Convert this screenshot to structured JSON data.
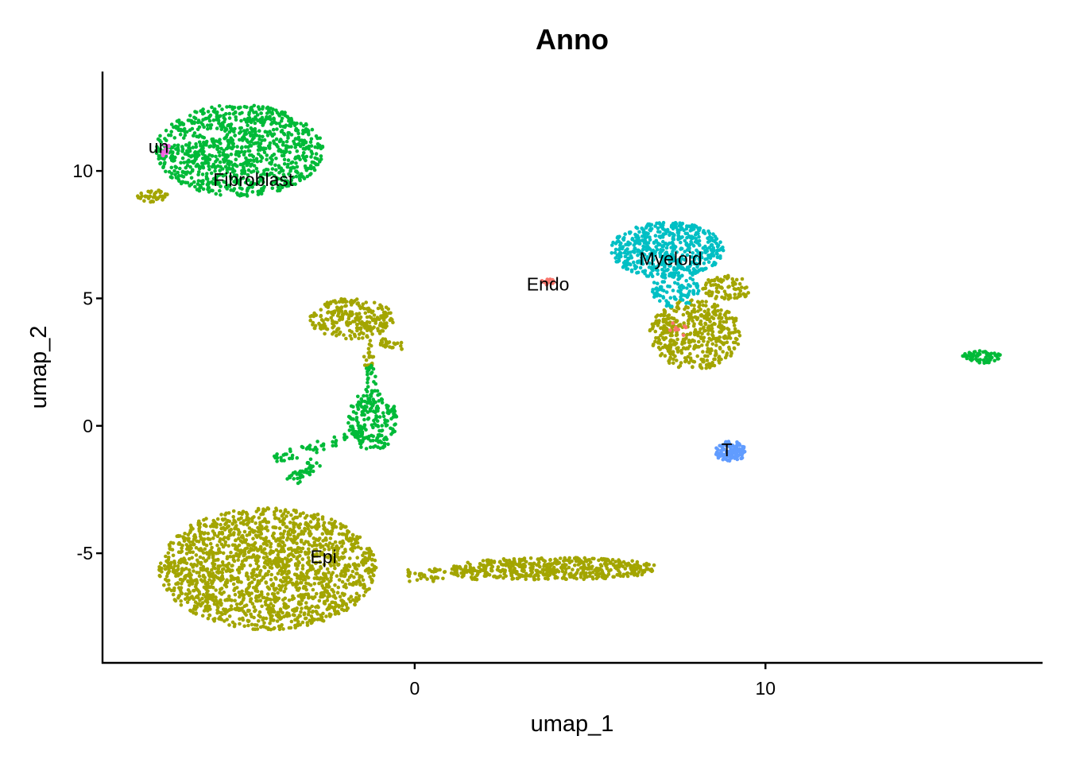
{
  "chart_data": {
    "type": "scatter",
    "title": "Anno",
    "xlabel": "umap_1",
    "ylabel": "umap_2",
    "xlim": [
      -8.9,
      17.9
    ],
    "ylim": [
      -9.3,
      13.9
    ],
    "x_ticks": [
      0,
      10
    ],
    "y_ticks": [
      -5,
      0,
      5,
      10
    ],
    "x_tick_labels": [
      "0",
      "10"
    ],
    "y_tick_labels": [
      "-5",
      "0",
      "5",
      "10"
    ],
    "grid": false,
    "legend": "none",
    "clusters": [
      {
        "name": "Epi",
        "label_pos": [
          -2.6,
          -5.2
        ],
        "color": "#A3A500"
      },
      {
        "name": "Fibroblast",
        "label_pos": [
          -4.6,
          9.6
        ],
        "color": "#00BA38"
      },
      {
        "name": "Myeloid",
        "label_pos": [
          7.3,
          6.5
        ],
        "color": "#00BFC4"
      },
      {
        "name": "Endo",
        "label_pos": [
          3.8,
          5.5
        ],
        "color": "#F8766D"
      },
      {
        "name": "T",
        "label_pos": [
          8.9,
          -1.0
        ],
        "color": "#619CFF"
      },
      {
        "name": "un",
        "label_pos": [
          -7.3,
          10.9
        ],
        "color": "#F564E3"
      }
    ],
    "point_groups": [
      {
        "cluster": "Epi",
        "shape": "ellipse",
        "center": [
          -4.2,
          -5.6
        ],
        "radius": [
          3.1,
          2.4
        ],
        "n": 1800
      },
      {
        "cluster": "Epi",
        "shape": "ellipse",
        "center": [
          4.0,
          -5.6
        ],
        "radius": [
          3.0,
          0.45
        ],
        "n": 500
      },
      {
        "cluster": "Epi",
        "shape": "segment",
        "from": [
          -0.2,
          -5.9
        ],
        "to": [
          1.8,
          -5.8
        ],
        "width": 0.25,
        "n": 60
      },
      {
        "cluster": "Epi",
        "shape": "ellipse",
        "center": [
          -1.8,
          4.2
        ],
        "radius": [
          1.2,
          0.8
        ],
        "n": 250
      },
      {
        "cluster": "Epi",
        "shape": "segment",
        "from": [
          -1.0,
          3.3
        ],
        "to": [
          -0.3,
          3.1
        ],
        "width": 0.15,
        "n": 25
      },
      {
        "cluster": "Epi",
        "shape": "segment",
        "from": [
          -1.3,
          3.4
        ],
        "to": [
          -1.3,
          2.3
        ],
        "width": 0.15,
        "n": 20
      },
      {
        "cluster": "Epi",
        "shape": "ellipse",
        "center": [
          8.0,
          3.6
        ],
        "radius": [
          1.3,
          1.4
        ],
        "n": 450
      },
      {
        "cluster": "Epi",
        "shape": "ellipse",
        "center": [
          8.9,
          5.4
        ],
        "radius": [
          0.7,
          0.5
        ],
        "n": 80
      },
      {
        "cluster": "Epi",
        "shape": "ellipse",
        "center": [
          -7.4,
          9.0
        ],
        "radius": [
          0.5,
          0.25
        ],
        "n": 40
      },
      {
        "cluster": "Fibroblast",
        "shape": "ellipse",
        "center": [
          -5.0,
          10.8
        ],
        "radius": [
          2.4,
          1.8
        ],
        "n": 1000
      },
      {
        "cluster": "Fibroblast",
        "shape": "ellipse",
        "center": [
          -1.2,
          0.2
        ],
        "radius": [
          0.7,
          1.2
        ],
        "n": 200
      },
      {
        "cluster": "Fibroblast",
        "shape": "segment",
        "from": [
          -1.3,
          2.4
        ],
        "to": [
          -1.2,
          0.8
        ],
        "width": 0.15,
        "n": 30
      },
      {
        "cluster": "Fibroblast",
        "shape": "segment",
        "from": [
          -1.4,
          -0.3
        ],
        "to": [
          -4.0,
          -1.3
        ],
        "width": 0.2,
        "n": 60
      },
      {
        "cluster": "Fibroblast",
        "shape": "segment",
        "from": [
          -2.8,
          -1.4
        ],
        "to": [
          -3.5,
          -2.2
        ],
        "width": 0.2,
        "n": 40
      },
      {
        "cluster": "Fibroblast",
        "shape": "ellipse",
        "center": [
          16.2,
          2.7
        ],
        "radius": [
          0.6,
          0.25
        ],
        "n": 70
      },
      {
        "cluster": "Myeloid",
        "shape": "ellipse",
        "center": [
          7.2,
          6.9
        ],
        "radius": [
          1.6,
          1.1
        ],
        "n": 550
      },
      {
        "cluster": "Myeloid",
        "shape": "ellipse",
        "center": [
          7.4,
          5.3
        ],
        "radius": [
          0.7,
          0.7
        ],
        "n": 90
      },
      {
        "cluster": "Endo",
        "shape": "ellipse",
        "center": [
          3.8,
          5.65
        ],
        "radius": [
          0.2,
          0.12
        ],
        "n": 14
      },
      {
        "cluster": "Endo",
        "shape": "ellipse",
        "center": [
          7.5,
          3.8
        ],
        "radius": [
          0.3,
          0.3
        ],
        "n": 8
      },
      {
        "cluster": "T",
        "shape": "ellipse",
        "center": [
          9.0,
          -1.0
        ],
        "radius": [
          0.45,
          0.4
        ],
        "n": 120
      },
      {
        "cluster": "un",
        "shape": "ellipse",
        "center": [
          -7.1,
          10.8
        ],
        "radius": [
          0.12,
          0.3
        ],
        "n": 14
      }
    ]
  }
}
